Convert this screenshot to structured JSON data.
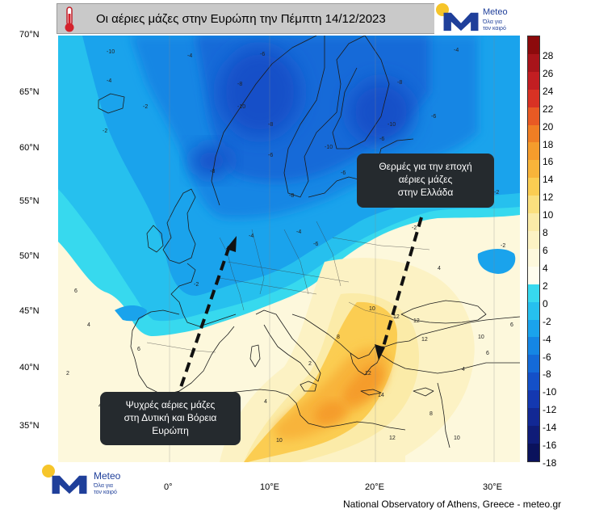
{
  "title": "Οι αέριες μάζες στην Ευρώπη την  Πέμπτη 14/12/2023",
  "logo": {
    "word": "Meteo",
    "tagline_1": "Όλα για",
    "tagline_2": "τον καιρό"
  },
  "latitude_labels": [
    "70°N",
    "65°N",
    "60°N",
    "55°N",
    "50°N",
    "45°N",
    "40°N",
    "35°N"
  ],
  "longitude_labels": [
    "0°",
    "10°E",
    "20°E",
    "30°E"
  ],
  "colorbar": {
    "labels": [
      "28",
      "26",
      "24",
      "22",
      "20",
      "18",
      "16",
      "14",
      "12",
      "10",
      "8",
      "6",
      "4",
      "2",
      "0",
      "-2",
      "-4",
      "-6",
      "-8",
      "-10",
      "-12",
      "-14",
      "-16",
      "-18"
    ],
    "colors": [
      "#8c0a0c",
      "#a8141a",
      "#c21e22",
      "#d83224",
      "#e85a24",
      "#f07e24",
      "#f59c2c",
      "#f8b43a",
      "#fbcd52",
      "#fbe07e",
      "#fbeba8",
      "#fcf2c4",
      "#fdf8dc",
      "#fefcee",
      "#37d9ee",
      "#26c0ee",
      "#1aa3ec",
      "#1586e4",
      "#146ad8",
      "#1450c8",
      "#1438b0",
      "#122894",
      "#0f1c78",
      "#0a125c"
    ]
  },
  "callouts": {
    "cold": [
      "Ψυχρές αέριες μάζες",
      "στη Δυτική και Βόρεια",
      "Ευρώπη"
    ],
    "warm": [
      "Θερμές για την εποχή",
      "αέριες μάζες",
      "στην Ελλάδα"
    ]
  },
  "contour_labels": [
    "-4",
    "-4",
    "-6",
    "-2",
    "-8",
    "-10",
    "-10",
    "-8",
    "-6",
    "-6",
    "-8",
    "-2",
    "-10",
    "-6",
    "-4",
    "-8",
    "-4",
    "-2",
    "-6",
    "-10",
    "-6",
    "2",
    "4",
    "6",
    "6",
    "4",
    "2",
    "4",
    "2",
    "10",
    "8",
    "10",
    "12",
    "12",
    "12",
    "12",
    "14",
    "10",
    "10",
    "12",
    "8",
    "6",
    "6",
    "4",
    "4",
    "-8",
    "-4",
    "-6",
    "-2",
    "-2",
    "-2"
  ],
  "credit": "National Observatory of Athens, Greece - meteo.gr",
  "colors": {
    "cold": "#1aa3ec",
    "warm": "#f59c2c",
    "callout_bg": "#252a2e",
    "title_bar": "#c9c9c9"
  }
}
